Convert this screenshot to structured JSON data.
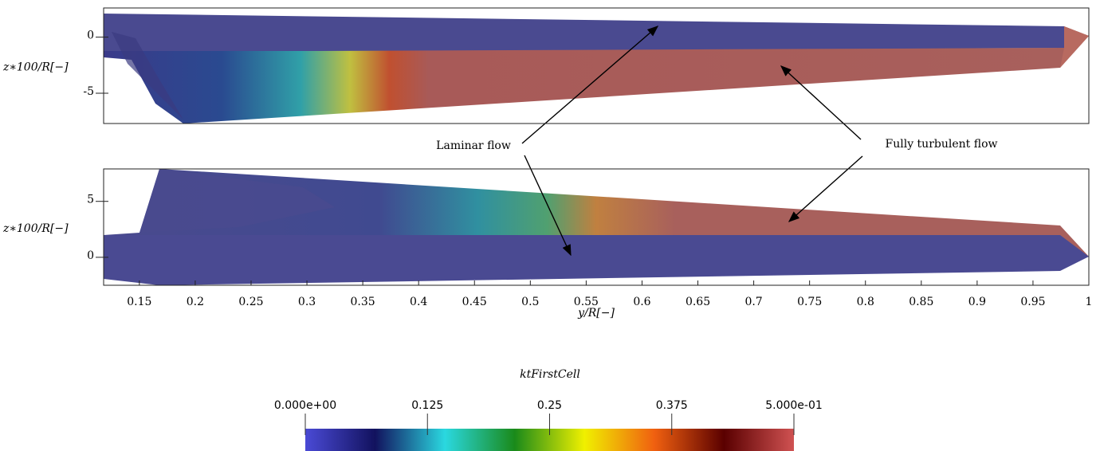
{
  "panels": [
    {
      "ylabel": "z∗100/R[−]",
      "ylim": [
        -7.7,
        2.6
      ],
      "yticks": [
        0,
        -5
      ]
    },
    {
      "ylabel": "z∗100/R[−]",
      "ylim": [
        -2.5,
        7.9
      ],
      "yticks": [
        0,
        5
      ]
    }
  ],
  "xaxis": {
    "label": "y/R[−]",
    "xlim": [
      0.118,
      1
    ],
    "xticks": [
      0.15,
      0.2,
      0.25,
      0.3,
      0.35,
      0.4,
      0.45,
      0.5,
      0.55,
      0.6,
      0.65,
      0.7,
      0.75,
      0.8,
      0.85,
      0.9,
      0.95,
      1
    ]
  },
  "annotations": [
    "Laminar flow",
    "Fully turbulent flow"
  ],
  "colorbar": {
    "title": "ktFirstCell",
    "range": [
      0,
      0.5
    ],
    "ticks": [
      {
        "value": 0,
        "label": "0.000e+00"
      },
      0.125,
      0.25,
      0.375,
      {
        "value": 0.5,
        "label": "5.000e-01"
      }
    ],
    "colors": [
      "#4a4ad6",
      "#12125e",
      "#2ad8e0",
      "#1a8a1a",
      "#f0f000",
      "#f06010",
      "#5a0000",
      "#d05252"
    ]
  }
}
